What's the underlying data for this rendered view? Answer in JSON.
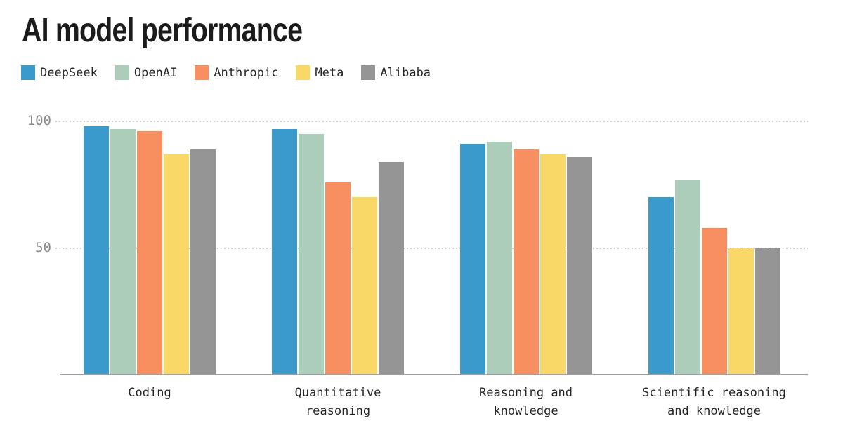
{
  "title": "AI model performance",
  "colors": {
    "title_text": "#1B1B1B",
    "label_text": "#262626",
    "tick_text": "#8A8A8A",
    "gridline": "#CFCFCF",
    "axis_line": "#9E9E9E",
    "background": "#FFFFFF"
  },
  "chart_data": {
    "type": "bar",
    "title": "AI model performance",
    "categories": [
      "Coding",
      "Quantitative reasoning",
      "Reasoning and knowledge",
      "Scientific reasoning and knowledge"
    ],
    "category_label_lines": [
      [
        "Coding"
      ],
      [
        "Quantitative",
        "reasoning"
      ],
      [
        "Reasoning and",
        "knowledge"
      ],
      [
        "Scientific reasoning",
        "and knowledge"
      ]
    ],
    "series": [
      {
        "name": "DeepSeek",
        "color": "#3A9ACC",
        "values": [
          98,
          97,
          91,
          70
        ]
      },
      {
        "name": "OpenAI",
        "color": "#ABCDBA",
        "values": [
          97,
          95,
          92,
          77
        ]
      },
      {
        "name": "Anthropic",
        "color": "#F78F60",
        "values": [
          96,
          76,
          89,
          58
        ]
      },
      {
        "name": "Meta",
        "color": "#FAD868",
        "values": [
          87,
          70,
          87,
          50
        ]
      },
      {
        "name": "Alibaba",
        "color": "#959595",
        "values": [
          89,
          84,
          86,
          50
        ]
      }
    ],
    "ylim": [
      0,
      100
    ],
    "yticks": [
      50,
      100
    ],
    "xlabel": "",
    "ylabel": "",
    "grid": "horizontal-dotted",
    "legend_position": "top-left"
  }
}
